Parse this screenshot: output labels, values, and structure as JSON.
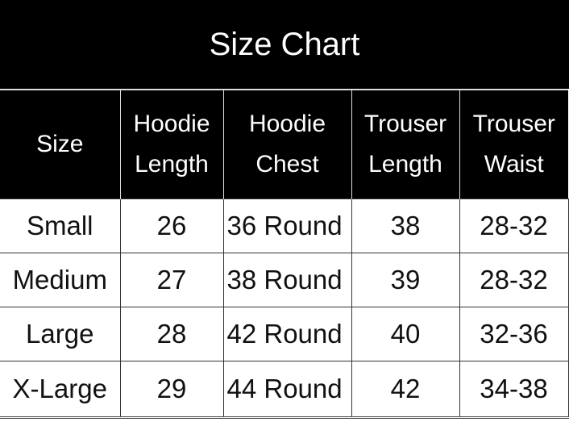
{
  "title": "Size Chart",
  "headers": [
    [
      "Size"
    ],
    [
      "Hoodie",
      "Length"
    ],
    [
      "Hoodie",
      "Chest"
    ],
    [
      "Trouser",
      "Length"
    ],
    [
      "Trouser",
      "Waist"
    ]
  ],
  "rows": [
    [
      "Small",
      "26",
      "36 Round",
      "38",
      "28-32"
    ],
    [
      "Medium",
      "27",
      "38 Round",
      "39",
      "28-32"
    ],
    [
      "Large",
      "28",
      "42 Round",
      "40",
      "32-36"
    ],
    [
      "X-Large",
      "29",
      "44 Round",
      "42",
      "34-38"
    ]
  ]
}
